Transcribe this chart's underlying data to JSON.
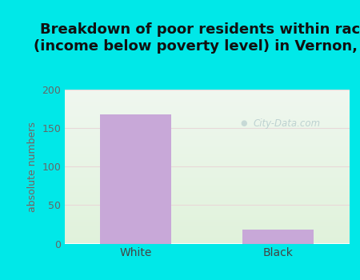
{
  "title": "Breakdown of poor residents within races\n(income below poverty level) in Vernon, WI",
  "categories": [
    "White",
    "Black"
  ],
  "values": [
    168,
    18
  ],
  "bar_color": "#c8a8d8",
  "ylabel": "absolute numbers",
  "ylabel_color": "#7a6060",
  "ylim": [
    0,
    200
  ],
  "yticks": [
    0,
    50,
    100,
    150,
    200
  ],
  "bg_color": "#00e8e8",
  "plot_bg": "#eaf5ea",
  "title_fontsize": 13,
  "bar_width": 0.5,
  "watermark": "City-Data.com",
  "watermark_color": "#b8cece"
}
